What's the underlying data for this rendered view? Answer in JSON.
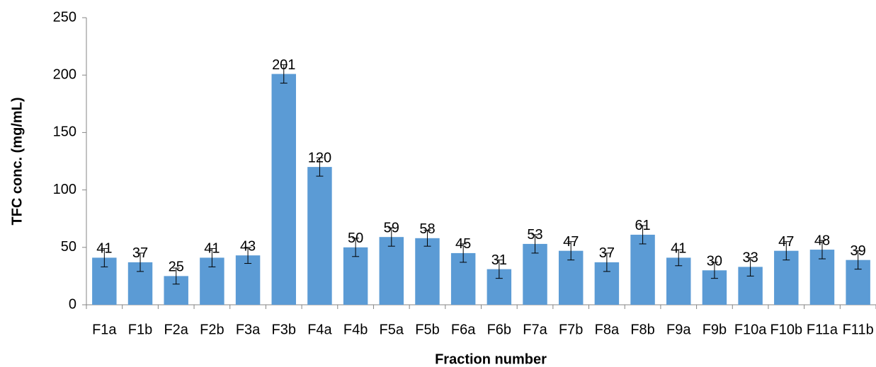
{
  "chart_data": {
    "type": "bar",
    "xlabel": "Fraction number",
    "ylabel": "TFC conc. (mg/mL)",
    "categories": [
      "F1a",
      "F1b",
      "F2a",
      "F2b",
      "F3a",
      "F3b",
      "F4a",
      "F4b",
      "F5a",
      "F5b",
      "F6a",
      "F6b",
      "F7a",
      "F7b",
      "F8a",
      "F8b",
      "F9a",
      "F9b",
      "F10a",
      "F10b",
      "F11a",
      "F11b"
    ],
    "values": [
      41,
      37,
      25,
      41,
      43,
      201,
      120,
      50,
      59,
      58,
      45,
      31,
      53,
      47,
      37,
      61,
      41,
      30,
      33,
      47,
      48,
      39
    ],
    "errors": [
      8,
      8,
      7,
      8,
      7,
      8,
      8,
      8,
      8,
      7,
      8,
      8,
      8,
      8,
      8,
      8,
      7,
      7,
      8,
      8,
      8,
      8
    ],
    "color": "#5b9bd5",
    "ylim": [
      0,
      250
    ],
    "yticks": [
      0,
      50,
      100,
      150,
      200,
      250
    ],
    "grid": false
  }
}
